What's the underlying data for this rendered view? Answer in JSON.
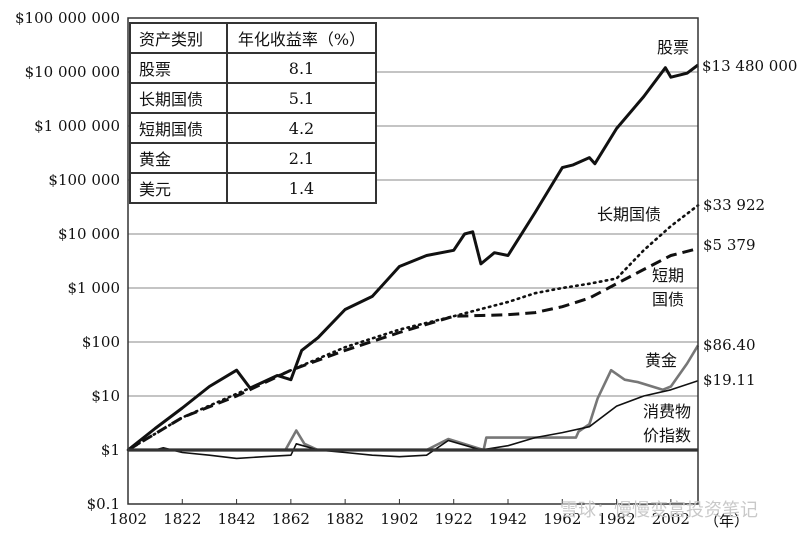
{
  "chart_data": {
    "type": "line",
    "xlabel": "（年）",
    "ylabel": "",
    "yscale": "log",
    "xlim": [
      1802,
      2012
    ],
    "ylim": [
      0.1,
      100000000
    ],
    "grid": "horizontal",
    "x_ticks": [
      "1802",
      "1822",
      "1842",
      "1862",
      "1882",
      "1902",
      "1922",
      "1942",
      "1962",
      "1982",
      "2002"
    ],
    "y_ticks": [
      "$100 000 000",
      "$10 000 000",
      "$1 000 000",
      "$100 000",
      "$10 000",
      "$1 000",
      "$100",
      "$10",
      "$1",
      "$0.1"
    ],
    "y_tick_values": [
      100000000,
      10000000,
      1000000,
      100000,
      10000,
      1000,
      100,
      10,
      1,
      0.1
    ],
    "table": {
      "headers": [
        "资产类别",
        "年化收益率（%）"
      ],
      "rows": [
        [
          "股票",
          "8.1"
        ],
        [
          "长期国债",
          "5.1"
        ],
        [
          "短期国债",
          "4.2"
        ],
        [
          "黄金",
          "2.1"
        ],
        [
          "美元",
          "1.4"
        ]
      ]
    },
    "series": [
      {
        "name": "股票",
        "end_label": "$13 480 000",
        "style": "solid-thick",
        "x": [
          1802,
          1812,
          1822,
          1832,
          1842,
          1847,
          1857,
          1862,
          1866,
          1872,
          1882,
          1892,
          1902,
          1912,
          1922,
          1926,
          1929,
          1932,
          1937,
          1942,
          1952,
          1962,
          1966,
          1972,
          1974,
          1982,
          1992,
          2000,
          2002,
          2008,
          2012
        ],
        "y": [
          1,
          2.5,
          6,
          15,
          30,
          14,
          24,
          20,
          70,
          120,
          400,
          700,
          2500,
          4000,
          5000,
          10000,
          11000,
          2800,
          4500,
          4000,
          25000,
          170000,
          190000,
          260000,
          200000,
          900000,
          3500000,
          12000000,
          8000000,
          9500000,
          13480000
        ]
      },
      {
        "name": "长期国债",
        "end_label": "$33 922",
        "style": "dotted",
        "x": [
          1802,
          1822,
          1842,
          1862,
          1882,
          1902,
          1922,
          1942,
          1952,
          1962,
          1972,
          1982,
          1992,
          2002,
          2012
        ],
        "y": [
          1,
          4,
          11,
          30,
          80,
          170,
          300,
          550,
          800,
          1000,
          1200,
          1500,
          5000,
          14000,
          33922
        ]
      },
      {
        "name": "短期国债",
        "end_label": "$5 379",
        "style": "dashed",
        "x": [
          1802,
          1822,
          1842,
          1862,
          1882,
          1902,
          1922,
          1932,
          1942,
          1952,
          1962,
          1972,
          1982,
          1992,
          2002,
          2012
        ],
        "y": [
          1,
          4,
          10,
          30,
          70,
          150,
          300,
          310,
          320,
          350,
          450,
          650,
          1200,
          2200,
          4000,
          5379
        ]
      },
      {
        "name": "黄金",
        "end_label": "$86.40",
        "style": "gray",
        "x": [
          1802,
          1812,
          1822,
          1842,
          1860,
          1864,
          1867,
          1872,
          1900,
          1912,
          1920,
          1933,
          1934,
          1960,
          1967,
          1968,
          1972,
          1975,
          1980,
          1985,
          1990,
          1999,
          2002,
          2008,
          2012
        ],
        "y": [
          1,
          1,
          1,
          1,
          1,
          2.3,
          1.3,
          1,
          1,
          1,
          1.6,
          1,
          1.7,
          1.7,
          1.7,
          2.2,
          3,
          9,
          30,
          20,
          18,
          13,
          15,
          40,
          86.4
        ]
      },
      {
        "name": "消费物价指数",
        "end_label": "$19.11",
        "style": "solid-thin",
        "x": [
          1802,
          1812,
          1815,
          1822,
          1832,
          1842,
          1852,
          1862,
          1864,
          1872,
          1882,
          1892,
          1902,
          1912,
          1920,
          1932,
          1942,
          1952,
          1962,
          1972,
          1982,
          1992,
          2002,
          2012
        ],
        "y": [
          1,
          1,
          1.1,
          0.9,
          0.8,
          0.7,
          0.75,
          0.8,
          1.3,
          1,
          0.9,
          0.8,
          0.75,
          0.8,
          1.5,
          1,
          1.2,
          1.7,
          2.1,
          2.7,
          6.5,
          10,
          13,
          19.11
        ]
      },
      {
        "name": "美元",
        "style": "solid-thick-flat",
        "x": [
          1802,
          2012
        ],
        "y": [
          1,
          1
        ]
      }
    ],
    "labels": {
      "stock": "股票",
      "bond_long": "长期国债",
      "bill_short_1": "短期",
      "bill_short_2": "国债",
      "gold": "黄金",
      "cpi_1": "消费物",
      "cpi_2": "价指数"
    },
    "watermark": "雪球：慢慢变富投资笔记"
  }
}
